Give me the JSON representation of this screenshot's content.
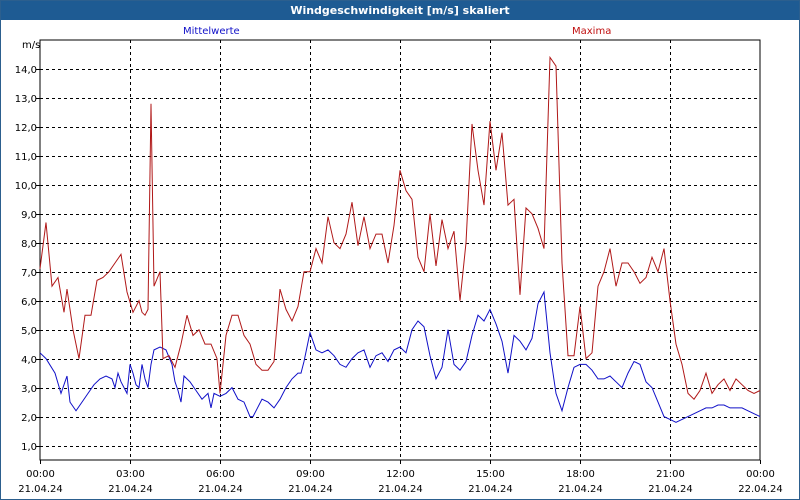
{
  "window": {
    "title": "Windgeschwindigkeit [m/s] skaliert"
  },
  "colors": {
    "titlebar": "#1e5b93",
    "mean_series": "#1010c8",
    "max_series": "#b01818",
    "grid": "#000000"
  },
  "chart_data": {
    "type": "line",
    "unit_label": "m/s",
    "ylim": [
      0.5,
      15
    ],
    "y_ticks": [
      "1,0",
      "2,0",
      "3,0",
      "4,0",
      "5,0",
      "6,0",
      "7,0",
      "8,0",
      "9,0",
      "10,0",
      "11,0",
      "12,0",
      "13,0",
      "14,0"
    ],
    "y_tick_values": [
      1,
      2,
      3,
      4,
      5,
      6,
      7,
      8,
      9,
      10,
      11,
      12,
      13,
      14
    ],
    "xlim_hours": [
      0,
      24
    ],
    "x_ticks": [
      {
        "hour": 0,
        "time": "00:00",
        "date": "21.04.24"
      },
      {
        "hour": 3,
        "time": "03:00",
        "date": "21.04.24"
      },
      {
        "hour": 6,
        "time": "06:00",
        "date": "21.04.24"
      },
      {
        "hour": 9,
        "time": "09:00",
        "date": "21.04.24"
      },
      {
        "hour": 12,
        "time": "12:00",
        "date": "21.04.24"
      },
      {
        "hour": 15,
        "time": "15:00",
        "date": "21.04.24"
      },
      {
        "hour": 18,
        "time": "18:00",
        "date": "21.04.24"
      },
      {
        "hour": 21,
        "time": "21:00",
        "date": "21.04.24"
      },
      {
        "hour": 24,
        "time": "00:00",
        "date": "22.04.24"
      }
    ],
    "grid": true,
    "series": [
      {
        "name": "Mittelwerte",
        "color": "#1010c8",
        "points": [
          [
            0.0,
            4.2
          ],
          [
            0.2,
            4.0
          ],
          [
            0.5,
            3.5
          ],
          [
            0.7,
            2.8
          ],
          [
            0.9,
            3.4
          ],
          [
            1.0,
            2.5
          ],
          [
            1.2,
            2.2
          ],
          [
            1.4,
            2.5
          ],
          [
            1.6,
            2.8
          ],
          [
            1.8,
            3.1
          ],
          [
            2.0,
            3.3
          ],
          [
            2.2,
            3.4
          ],
          [
            2.4,
            3.3
          ],
          [
            2.5,
            3.0
          ],
          [
            2.6,
            3.5
          ],
          [
            2.7,
            3.2
          ],
          [
            2.9,
            2.8
          ],
          [
            3.0,
            3.8
          ],
          [
            3.1,
            3.5
          ],
          [
            3.2,
            3.1
          ],
          [
            3.3,
            3.0
          ],
          [
            3.4,
            3.8
          ],
          [
            3.5,
            3.3
          ],
          [
            3.6,
            3.0
          ],
          [
            3.7,
            3.8
          ],
          [
            3.8,
            4.3
          ],
          [
            4.0,
            4.4
          ],
          [
            4.2,
            4.3
          ],
          [
            4.4,
            3.8
          ],
          [
            4.5,
            3.2
          ],
          [
            4.6,
            2.9
          ],
          [
            4.7,
            2.5
          ],
          [
            4.8,
            3.4
          ],
          [
            5.0,
            3.2
          ],
          [
            5.2,
            2.9
          ],
          [
            5.4,
            2.6
          ],
          [
            5.6,
            2.8
          ],
          [
            5.7,
            2.3
          ],
          [
            5.8,
            2.8
          ],
          [
            6.0,
            2.7
          ],
          [
            6.2,
            2.8
          ],
          [
            6.4,
            3.0
          ],
          [
            6.6,
            2.6
          ],
          [
            6.8,
            2.5
          ],
          [
            7.0,
            2.0
          ],
          [
            7.1,
            2.0
          ],
          [
            7.2,
            2.2
          ],
          [
            7.4,
            2.6
          ],
          [
            7.6,
            2.5
          ],
          [
            7.8,
            2.3
          ],
          [
            8.0,
            2.6
          ],
          [
            8.2,
            3.0
          ],
          [
            8.4,
            3.3
          ],
          [
            8.6,
            3.5
          ],
          [
            8.7,
            3.5
          ],
          [
            8.8,
            3.9
          ],
          [
            9.0,
            4.9
          ],
          [
            9.2,
            4.3
          ],
          [
            9.4,
            4.2
          ],
          [
            9.6,
            4.3
          ],
          [
            9.8,
            4.1
          ],
          [
            10.0,
            3.8
          ],
          [
            10.2,
            3.7
          ],
          [
            10.4,
            4.0
          ],
          [
            10.6,
            4.2
          ],
          [
            10.8,
            4.3
          ],
          [
            11.0,
            3.7
          ],
          [
            11.2,
            4.1
          ],
          [
            11.4,
            4.2
          ],
          [
            11.6,
            3.9
          ],
          [
            11.8,
            4.3
          ],
          [
            12.0,
            4.4
          ],
          [
            12.2,
            4.2
          ],
          [
            12.4,
            5.0
          ],
          [
            12.6,
            5.3
          ],
          [
            12.8,
            5.1
          ],
          [
            13.0,
            4.1
          ],
          [
            13.2,
            3.3
          ],
          [
            13.4,
            3.7
          ],
          [
            13.6,
            5.0
          ],
          [
            13.8,
            3.8
          ],
          [
            14.0,
            3.6
          ],
          [
            14.2,
            3.9
          ],
          [
            14.4,
            4.8
          ],
          [
            14.6,
            5.5
          ],
          [
            14.8,
            5.3
          ],
          [
            15.0,
            5.7
          ],
          [
            15.2,
            5.2
          ],
          [
            15.4,
            4.6
          ],
          [
            15.6,
            3.5
          ],
          [
            15.8,
            4.8
          ],
          [
            16.0,
            4.6
          ],
          [
            16.2,
            4.3
          ],
          [
            16.4,
            4.7
          ],
          [
            16.6,
            5.9
          ],
          [
            16.8,
            6.3
          ],
          [
            17.0,
            4.2
          ],
          [
            17.2,
            2.8
          ],
          [
            17.4,
            2.2
          ],
          [
            17.6,
            3.0
          ],
          [
            17.8,
            3.7
          ],
          [
            18.0,
            3.8
          ],
          [
            18.2,
            3.8
          ],
          [
            18.4,
            3.6
          ],
          [
            18.6,
            3.3
          ],
          [
            18.8,
            3.3
          ],
          [
            19.0,
            3.4
          ],
          [
            19.2,
            3.2
          ],
          [
            19.4,
            3.0
          ],
          [
            19.6,
            3.5
          ],
          [
            19.8,
            3.9
          ],
          [
            20.0,
            3.8
          ],
          [
            20.2,
            3.2
          ],
          [
            20.4,
            3.0
          ],
          [
            20.6,
            2.5
          ],
          [
            20.8,
            2.0
          ],
          [
            21.0,
            1.9
          ],
          [
            21.2,
            1.8
          ],
          [
            21.4,
            1.9
          ],
          [
            21.6,
            2.0
          ],
          [
            21.8,
            2.1
          ],
          [
            22.0,
            2.2
          ],
          [
            22.2,
            2.3
          ],
          [
            22.4,
            2.3
          ],
          [
            22.6,
            2.4
          ],
          [
            22.8,
            2.4
          ],
          [
            23.0,
            2.3
          ],
          [
            23.2,
            2.3
          ],
          [
            23.4,
            2.3
          ],
          [
            23.6,
            2.2
          ],
          [
            23.8,
            2.1
          ],
          [
            24.0,
            2.0
          ]
        ]
      },
      {
        "name": "Maxima",
        "color": "#b01818",
        "points": [
          [
            0.0,
            7.1
          ],
          [
            0.2,
            8.7
          ],
          [
            0.4,
            6.5
          ],
          [
            0.6,
            6.8
          ],
          [
            0.8,
            5.6
          ],
          [
            0.9,
            6.4
          ],
          [
            1.1,
            5.0
          ],
          [
            1.3,
            4.0
          ],
          [
            1.5,
            5.5
          ],
          [
            1.7,
            5.5
          ],
          [
            1.9,
            6.7
          ],
          [
            2.1,
            6.8
          ],
          [
            2.3,
            7.0
          ],
          [
            2.5,
            7.3
          ],
          [
            2.7,
            7.6
          ],
          [
            2.9,
            6.3
          ],
          [
            3.1,
            5.6
          ],
          [
            3.3,
            6.0
          ],
          [
            3.4,
            5.6
          ],
          [
            3.5,
            5.5
          ],
          [
            3.6,
            5.7
          ],
          [
            3.7,
            12.8
          ],
          [
            3.8,
            6.5
          ],
          [
            4.0,
            7.0
          ],
          [
            4.1,
            4.0
          ],
          [
            4.3,
            4.1
          ],
          [
            4.5,
            3.7
          ],
          [
            4.7,
            4.5
          ],
          [
            4.9,
            5.5
          ],
          [
            5.1,
            4.8
          ],
          [
            5.3,
            5.0
          ],
          [
            5.5,
            4.5
          ],
          [
            5.7,
            4.5
          ],
          [
            5.9,
            4.0
          ],
          [
            6.0,
            2.8
          ],
          [
            6.2,
            4.8
          ],
          [
            6.4,
            5.5
          ],
          [
            6.6,
            5.5
          ],
          [
            6.8,
            4.8
          ],
          [
            7.0,
            4.5
          ],
          [
            7.2,
            3.8
          ],
          [
            7.4,
            3.6
          ],
          [
            7.6,
            3.6
          ],
          [
            7.8,
            3.9
          ],
          [
            8.0,
            6.4
          ],
          [
            8.2,
            5.7
          ],
          [
            8.4,
            5.3
          ],
          [
            8.6,
            5.8
          ],
          [
            8.8,
            7.0
          ],
          [
            9.0,
            7.0
          ],
          [
            9.2,
            7.8
          ],
          [
            9.4,
            7.3
          ],
          [
            9.6,
            8.9
          ],
          [
            9.8,
            8.0
          ],
          [
            10.0,
            7.8
          ],
          [
            10.2,
            8.3
          ],
          [
            10.4,
            9.4
          ],
          [
            10.6,
            7.9
          ],
          [
            10.8,
            8.9
          ],
          [
            11.0,
            7.8
          ],
          [
            11.2,
            8.3
          ],
          [
            11.4,
            8.3
          ],
          [
            11.6,
            7.3
          ],
          [
            11.8,
            8.6
          ],
          [
            12.0,
            10.5
          ],
          [
            12.2,
            9.8
          ],
          [
            12.4,
            9.5
          ],
          [
            12.6,
            7.5
          ],
          [
            12.8,
            7.0
          ],
          [
            13.0,
            9.0
          ],
          [
            13.2,
            7.2
          ],
          [
            13.4,
            8.8
          ],
          [
            13.6,
            7.8
          ],
          [
            13.8,
            8.4
          ],
          [
            14.0,
            6.0
          ],
          [
            14.2,
            8.0
          ],
          [
            14.4,
            12.1
          ],
          [
            14.6,
            10.5
          ],
          [
            14.8,
            9.3
          ],
          [
            15.0,
            12.2
          ],
          [
            15.2,
            10.5
          ],
          [
            15.4,
            11.8
          ],
          [
            15.6,
            9.3
          ],
          [
            15.8,
            9.5
          ],
          [
            16.0,
            6.2
          ],
          [
            16.2,
            9.2
          ],
          [
            16.4,
            9.0
          ],
          [
            16.6,
            8.5
          ],
          [
            16.8,
            7.8
          ],
          [
            17.0,
            14.4
          ],
          [
            17.2,
            14.1
          ],
          [
            17.4,
            7.3
          ],
          [
            17.6,
            4.1
          ],
          [
            17.8,
            4.1
          ],
          [
            18.0,
            5.8
          ],
          [
            18.2,
            4.0
          ],
          [
            18.4,
            4.2
          ],
          [
            18.6,
            6.5
          ],
          [
            18.8,
            7.0
          ],
          [
            19.0,
            7.8
          ],
          [
            19.2,
            6.5
          ],
          [
            19.4,
            7.3
          ],
          [
            19.6,
            7.3
          ],
          [
            19.8,
            7.0
          ],
          [
            20.0,
            6.6
          ],
          [
            20.2,
            6.8
          ],
          [
            20.4,
            7.5
          ],
          [
            20.6,
            7.0
          ],
          [
            20.8,
            7.8
          ],
          [
            21.0,
            6.0
          ],
          [
            21.2,
            4.5
          ],
          [
            21.4,
            3.8
          ],
          [
            21.6,
            2.8
          ],
          [
            21.8,
            2.6
          ],
          [
            22.0,
            2.9
          ],
          [
            22.2,
            3.5
          ],
          [
            22.4,
            2.8
          ],
          [
            22.6,
            3.1
          ],
          [
            22.8,
            3.3
          ],
          [
            23.0,
            2.9
          ],
          [
            23.2,
            3.3
          ],
          [
            23.4,
            3.1
          ],
          [
            23.6,
            2.9
          ],
          [
            23.8,
            2.8
          ],
          [
            24.0,
            2.9
          ]
        ]
      }
    ]
  }
}
